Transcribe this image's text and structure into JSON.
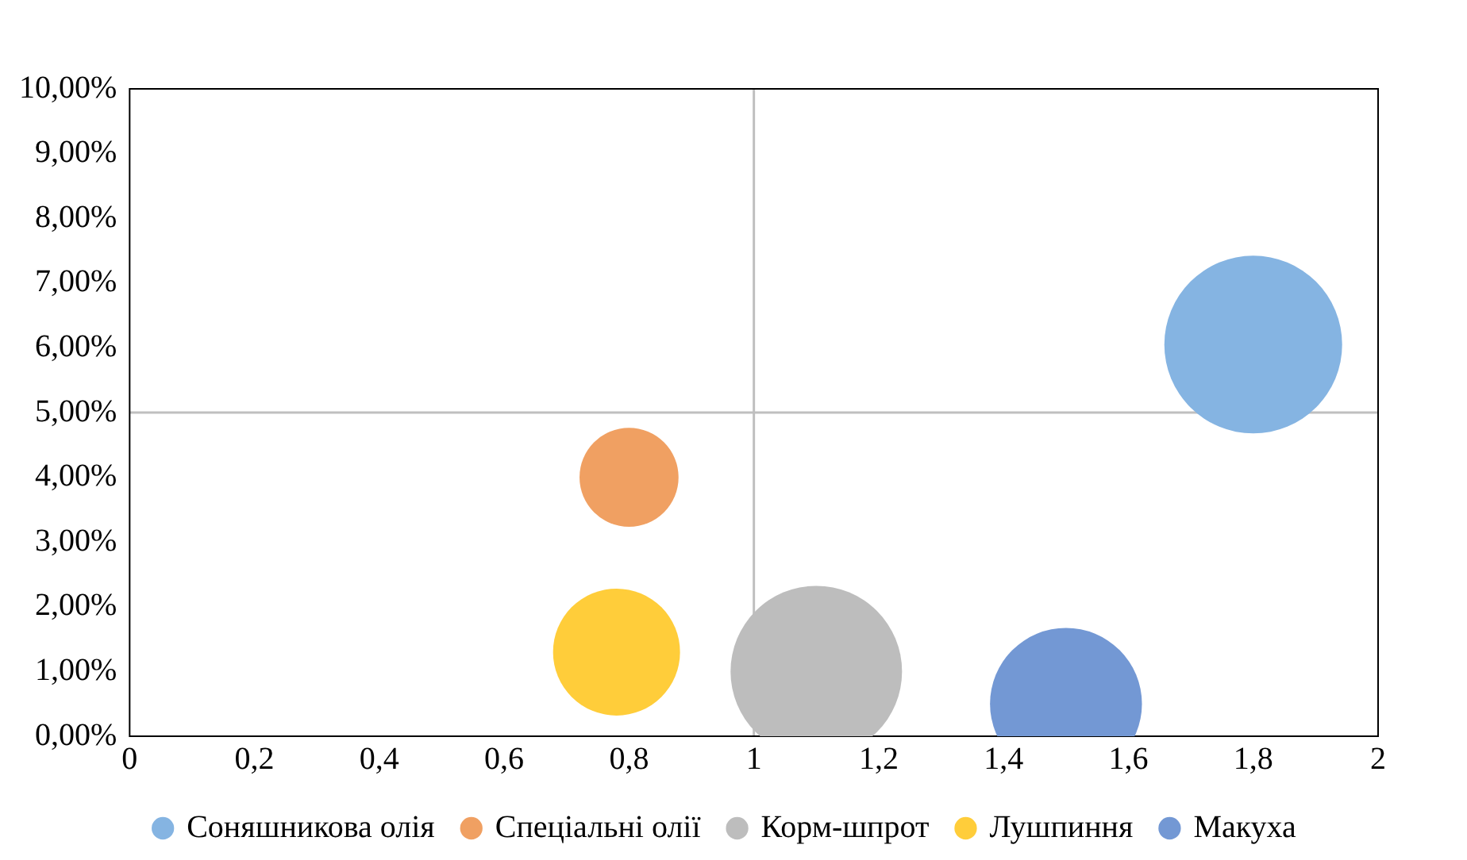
{
  "chart_data": {
    "type": "bubble",
    "series": [
      {
        "name": "Соняшникова олія",
        "color": "#85b4e2",
        "x": [
          1.8
        ],
        "values": [
          6.05
        ],
        "sizes": [
          1
        ]
      },
      {
        "name": "Спеціальні олії",
        "color": "#f0a062",
        "x": [
          0.8
        ],
        "values": [
          4.0
        ],
        "sizes": [
          0.31
        ]
      },
      {
        "name": "Корм-шпрот",
        "color": "#bdbdbd",
        "x": [
          1.1
        ],
        "values": [
          1.0
        ],
        "sizes": [
          0.93
        ]
      },
      {
        "name": "Лушпиння",
        "color": "#ffcd3a",
        "x": [
          0.78
        ],
        "values": [
          1.3
        ],
        "sizes": [
          0.51
        ]
      },
      {
        "name": "Макуха",
        "color": "#7398d4",
        "x": [
          1.5
        ],
        "values": [
          0.5
        ],
        "sizes": [
          0.73
        ]
      }
    ],
    "xlim": [
      0,
      2
    ],
    "xticks": [
      0,
      {
        "value": 0.2,
        "label": "0,2"
      },
      {
        "value": 0.4,
        "label": "0,4"
      },
      {
        "value": 0.6,
        "label": "0,6"
      },
      {
        "value": 0.8,
        "label": "0,8"
      },
      1,
      {
        "value": 1.2,
        "label": "1,2"
      },
      {
        "value": 1.4,
        "label": "1,4"
      },
      {
        "value": 1.6,
        "label": "1,6"
      },
      {
        "value": 1.8,
        "label": "1,8"
      },
      2
    ],
    "ylim": [
      0,
      10
    ],
    "yticks": [
      {
        "value": 0,
        "label": "0,00%"
      },
      {
        "value": 1,
        "label": "1,00%"
      },
      {
        "value": 2,
        "label": "2,00%"
      },
      {
        "value": 3,
        "label": "3,00%"
      },
      {
        "value": 4,
        "label": "4,00%"
      },
      {
        "value": 5,
        "label": "5,00%"
      },
      {
        "value": 6,
        "label": "6,00%"
      },
      {
        "value": 7,
        "label": "7,00%"
      },
      {
        "value": 8,
        "label": "8,00%"
      },
      {
        "value": 9,
        "label": "9,00%"
      },
      {
        "value": 10,
        "label": "10,00%"
      }
    ],
    "ref_lines": [
      {
        "axis": "x",
        "value": 1,
        "color": "#bfbfbf"
      },
      {
        "axis": "y",
        "value": 5,
        "color": "#bfbfbf"
      }
    ],
    "grid": false,
    "legend": "bottom"
  }
}
